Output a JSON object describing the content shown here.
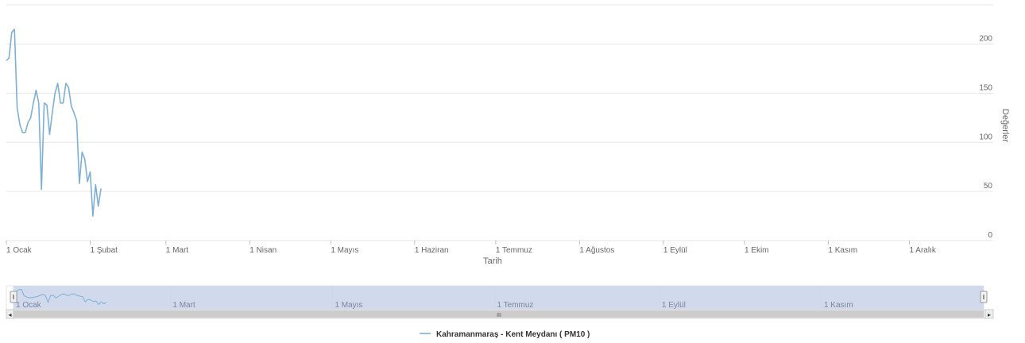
{
  "chart_data": {
    "type": "line",
    "title": "",
    "xlabel": "Tarih",
    "ylabel": "Değerler",
    "ylim": [
      0,
      240
    ],
    "yticks": [
      0,
      50,
      100,
      150,
      200
    ],
    "grid": true,
    "legend_position": "bottom-center",
    "x_tick_labels": [
      "1 Ocak",
      "1 Şubat",
      "1 Mart",
      "1 Nisan",
      "1 Mayıs",
      "1 Haziran",
      "1 Temmuz",
      "1 Ağustos",
      "1 Eylül",
      "1 Ekim",
      "1 Kasım",
      "1 Aralık"
    ],
    "series": [
      {
        "name": "Kahramanmaraş - Kent Meydanı ( PM10 )",
        "color": "#7eb0d6",
        "x": [
          "1 Ocak",
          "2 Ocak",
          "3 Ocak",
          "4 Ocak",
          "5 Ocak",
          "6 Ocak",
          "7 Ocak",
          "8 Ocak",
          "9 Ocak",
          "10 Ocak",
          "11 Ocak",
          "12 Ocak",
          "13 Ocak",
          "14 Ocak",
          "15 Ocak",
          "16 Ocak",
          "17 Ocak",
          "18 Ocak",
          "19 Ocak",
          "20 Ocak",
          "21 Ocak",
          "22 Ocak",
          "23 Ocak",
          "24 Ocak",
          "25 Ocak",
          "26 Ocak",
          "27 Ocak",
          "28 Ocak",
          "29 Ocak",
          "30 Ocak",
          "31 Ocak",
          "1 Şubat",
          "2 Şubat",
          "3 Şubat",
          "4 Şubat",
          "5 Şubat"
        ],
        "values": [
          183,
          186,
          212,
          215,
          135,
          118,
          110,
          110,
          120,
          125,
          140,
          153,
          140,
          52,
          140,
          138,
          108,
          130,
          150,
          160,
          140,
          140,
          160,
          156,
          137,
          130,
          122,
          58,
          90,
          83,
          60,
          70,
          25,
          57,
          35,
          53
        ]
      }
    ]
  },
  "navigator": {
    "labels": [
      "1 Ocak",
      "1 Mart",
      "1 Mayıs",
      "1 Temmuz",
      "1 Eylül",
      "1 Kasım"
    ]
  },
  "colors": {
    "line": "#7eb0d6",
    "grid": "#e6e6e6",
    "navigator_mask": "#ccd5ea"
  },
  "icons": {
    "scroll_left": "left-arrow-icon",
    "scroll_right": "right-arrow-icon"
  },
  "glyphs": {
    "left_arrow": "◂",
    "right_arrow": "▸",
    "grip": "III",
    "handle": "‖"
  }
}
